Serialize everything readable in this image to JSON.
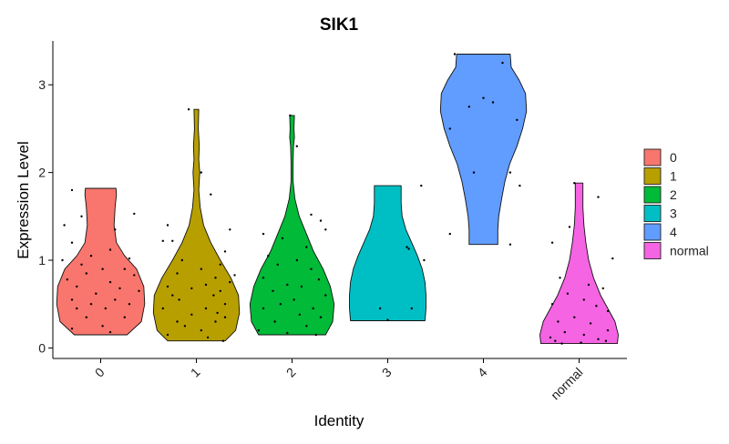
{
  "chart_data": {
    "type": "violin",
    "title": "SIK1",
    "xlabel": "Identity",
    "ylabel": "Expression Level",
    "ylim": [
      -0.12,
      3.5
    ],
    "yticks": [
      0,
      1,
      2,
      3
    ],
    "categories": [
      "0",
      "1",
      "2",
      "3",
      "4",
      "normal"
    ],
    "legend": {
      "placement": "right",
      "entries": [
        "0",
        "1",
        "2",
        "3",
        "4",
        "normal"
      ]
    },
    "grid": false,
    "series": [
      {
        "name": "0",
        "color": "#F8766D",
        "min": 0.15,
        "max": 1.82,
        "profile": [
          [
            0.15,
            0.55
          ],
          [
            0.3,
            0.85
          ],
          [
            0.5,
            0.92
          ],
          [
            0.7,
            0.9
          ],
          [
            0.9,
            0.75
          ],
          [
            1.05,
            0.5
          ],
          [
            1.2,
            0.33
          ],
          [
            1.4,
            0.28
          ],
          [
            1.6,
            0.3
          ],
          [
            1.75,
            0.33
          ],
          [
            1.82,
            0.32
          ]
        ],
        "points": [
          [
            -0.3,
            1.8
          ],
          [
            0.35,
            1.53
          ],
          [
            -0.2,
            1.5
          ],
          [
            -0.38,
            1.4
          ],
          [
            0.15,
            1.35
          ],
          [
            -0.3,
            1.2
          ],
          [
            0.1,
            1.12
          ],
          [
            -0.1,
            1.05
          ],
          [
            0.3,
            1.02
          ],
          [
            -0.4,
            1.0
          ],
          [
            -0.2,
            0.95
          ],
          [
            0.02,
            0.9
          ],
          [
            0.25,
            0.9
          ],
          [
            -0.15,
            0.85
          ],
          [
            0.35,
            0.83
          ],
          [
            -0.35,
            0.78
          ],
          [
            0.1,
            0.75
          ],
          [
            -0.25,
            0.7
          ],
          [
            0.2,
            0.68
          ],
          [
            -0.05,
            0.62
          ],
          [
            0.4,
            0.65
          ],
          [
            -0.3,
            0.55
          ],
          [
            0.15,
            0.55
          ],
          [
            0.3,
            0.5
          ],
          [
            -0.1,
            0.5
          ],
          [
            -0.25,
            0.45
          ],
          [
            0.05,
            0.45
          ],
          [
            -0.15,
            0.35
          ],
          [
            0.25,
            0.35
          ],
          [
            0.02,
            0.25
          ],
          [
            -0.3,
            0.22
          ],
          [
            0.1,
            0.18
          ]
        ]
      },
      {
        "name": "1",
        "color": "#B79F00",
        "min": 0.08,
        "max": 2.72,
        "profile": [
          [
            0.08,
            0.6
          ],
          [
            0.2,
            0.82
          ],
          [
            0.4,
            0.9
          ],
          [
            0.6,
            0.88
          ],
          [
            0.8,
            0.72
          ],
          [
            1.0,
            0.5
          ],
          [
            1.2,
            0.3
          ],
          [
            1.4,
            0.15
          ],
          [
            1.6,
            0.08
          ],
          [
            1.8,
            0.05
          ],
          [
            2.0,
            0.07
          ],
          [
            2.15,
            0.05
          ],
          [
            2.3,
            0.06
          ],
          [
            2.5,
            0.04
          ],
          [
            2.72,
            0.05
          ]
        ],
        "points": [
          [
            -0.08,
            2.72
          ],
          [
            0.05,
            2.0
          ],
          [
            0.15,
            1.75
          ],
          [
            -0.3,
            1.4
          ],
          [
            0.35,
            1.35
          ],
          [
            -0.35,
            1.22
          ],
          [
            -0.25,
            1.22
          ],
          [
            0.3,
            1.1
          ],
          [
            -0.15,
            1.0
          ],
          [
            0.25,
            0.95
          ],
          [
            0.05,
            0.9
          ],
          [
            -0.2,
            0.85
          ],
          [
            0.4,
            0.83
          ],
          [
            0.2,
            0.8
          ],
          [
            0.35,
            0.75
          ],
          [
            -0.3,
            0.7
          ],
          [
            0.1,
            0.72
          ],
          [
            -0.05,
            0.68
          ],
          [
            0.25,
            0.65
          ],
          [
            -0.25,
            0.6
          ],
          [
            0.18,
            0.6
          ],
          [
            -0.18,
            0.55
          ],
          [
            0.3,
            0.5
          ],
          [
            -0.35,
            0.45
          ],
          [
            0.1,
            0.45
          ],
          [
            0.22,
            0.4
          ],
          [
            -0.05,
            0.38
          ],
          [
            0.3,
            0.35
          ],
          [
            -0.2,
            0.3
          ],
          [
            0.2,
            0.3
          ],
          [
            -0.12,
            0.25
          ],
          [
            0.05,
            0.2
          ],
          [
            -0.3,
            0.15
          ],
          [
            0.12,
            0.12
          ],
          [
            0.28,
            0.08
          ]
        ]
      },
      {
        "name": "2",
        "color": "#00BA38",
        "min": 0.15,
        "max": 2.65,
        "profile": [
          [
            0.15,
            0.7
          ],
          [
            0.3,
            0.85
          ],
          [
            0.5,
            0.88
          ],
          [
            0.7,
            0.8
          ],
          [
            0.9,
            0.65
          ],
          [
            1.1,
            0.45
          ],
          [
            1.3,
            0.3
          ],
          [
            1.5,
            0.15
          ],
          [
            1.7,
            0.06
          ],
          [
            1.9,
            0.02
          ],
          [
            2.1,
            0.02
          ],
          [
            2.3,
            0.03
          ],
          [
            2.4,
            0.05
          ],
          [
            2.5,
            0.04
          ],
          [
            2.65,
            0.05
          ]
        ],
        "points": [
          [
            -0.02,
            2.65
          ],
          [
            0.05,
            2.3
          ],
          [
            0.2,
            1.52
          ],
          [
            0.3,
            1.45
          ],
          [
            0.35,
            1.35
          ],
          [
            -0.3,
            1.3
          ],
          [
            -0.1,
            1.25
          ],
          [
            0.15,
            1.15
          ],
          [
            -0.25,
            1.05
          ],
          [
            0.05,
            1.0
          ],
          [
            -0.15,
            0.95
          ],
          [
            0.2,
            0.9
          ],
          [
            -0.3,
            0.8
          ],
          [
            0.28,
            0.78
          ],
          [
            -0.05,
            0.72
          ],
          [
            0.1,
            0.7
          ],
          [
            -0.2,
            0.65
          ],
          [
            0.35,
            0.6
          ],
          [
            0.02,
            0.55
          ],
          [
            -0.12,
            0.5
          ],
          [
            0.22,
            0.45
          ],
          [
            -0.3,
            0.45
          ],
          [
            0.08,
            0.38
          ],
          [
            0.3,
            0.35
          ],
          [
            -0.18,
            0.3
          ],
          [
            0.15,
            0.25
          ],
          [
            -0.35,
            0.2
          ],
          [
            -0.05,
            0.17
          ],
          [
            0.25,
            0.15
          ]
        ]
      },
      {
        "name": "3",
        "color": "#00BFC4",
        "min": 0.31,
        "max": 1.85,
        "profile": [
          [
            0.31,
            0.78
          ],
          [
            0.45,
            0.8
          ],
          [
            0.6,
            0.8
          ],
          [
            0.75,
            0.78
          ],
          [
            0.9,
            0.72
          ],
          [
            1.05,
            0.62
          ],
          [
            1.2,
            0.5
          ],
          [
            1.35,
            0.38
          ],
          [
            1.5,
            0.3
          ],
          [
            1.65,
            0.28
          ],
          [
            1.75,
            0.28
          ],
          [
            1.85,
            0.28
          ]
        ],
        "points": [
          [
            0.35,
            1.85
          ],
          [
            0.2,
            1.15
          ],
          [
            0.22,
            1.13
          ],
          [
            0.38,
            1.0
          ],
          [
            -0.08,
            0.45
          ],
          [
            0.25,
            0.45
          ],
          [
            0.0,
            0.32
          ]
        ]
      },
      {
        "name": "4",
        "color": "#619CFF",
        "min": 1.18,
        "max": 3.35,
        "profile": [
          [
            1.18,
            0.3
          ],
          [
            1.35,
            0.3
          ],
          [
            1.5,
            0.32
          ],
          [
            1.7,
            0.38
          ],
          [
            1.9,
            0.45
          ],
          [
            2.1,
            0.55
          ],
          [
            2.3,
            0.7
          ],
          [
            2.5,
            0.82
          ],
          [
            2.7,
            0.9
          ],
          [
            2.9,
            0.88
          ],
          [
            3.05,
            0.75
          ],
          [
            3.2,
            0.58
          ],
          [
            3.35,
            0.56
          ]
        ],
        "points": [
          [
            -0.3,
            3.35
          ],
          [
            0.2,
            3.25
          ],
          [
            0.35,
            2.6
          ],
          [
            0.0,
            2.85
          ],
          [
            0.1,
            2.8
          ],
          [
            -0.15,
            2.75
          ],
          [
            0.28,
            2.0
          ],
          [
            -0.1,
            2.0
          ],
          [
            0.38,
            1.85
          ],
          [
            -0.35,
            2.5
          ],
          [
            0.28,
            1.18
          ],
          [
            -0.35,
            1.3
          ]
        ]
      },
      {
        "name": "normal",
        "color": "#F564E3",
        "min": 0.05,
        "max": 1.88,
        "profile": [
          [
            0.05,
            0.8
          ],
          [
            0.15,
            0.82
          ],
          [
            0.3,
            0.75
          ],
          [
            0.45,
            0.6
          ],
          [
            0.6,
            0.45
          ],
          [
            0.8,
            0.3
          ],
          [
            1.0,
            0.2
          ],
          [
            1.2,
            0.14
          ],
          [
            1.4,
            0.1
          ],
          [
            1.6,
            0.08
          ],
          [
            1.75,
            0.08
          ],
          [
            1.88,
            0.08
          ]
        ],
        "points": [
          [
            -0.05,
            1.88
          ],
          [
            0.2,
            1.72
          ],
          [
            -0.1,
            1.38
          ],
          [
            -0.28,
            1.2
          ],
          [
            0.35,
            1.02
          ],
          [
            -0.2,
            0.8
          ],
          [
            0.1,
            0.72
          ],
          [
            0.25,
            0.68
          ],
          [
            -0.12,
            0.62
          ],
          [
            0.05,
            0.55
          ],
          [
            -0.28,
            0.5
          ],
          [
            0.18,
            0.48
          ],
          [
            0.3,
            0.42
          ],
          [
            -0.05,
            0.35
          ],
          [
            -0.22,
            0.3
          ],
          [
            0.12,
            0.28
          ],
          [
            0.3,
            0.2
          ],
          [
            -0.15,
            0.18
          ],
          [
            0.05,
            0.15
          ],
          [
            -0.3,
            0.12
          ],
          [
            0.2,
            0.1
          ],
          [
            -0.25,
            0.08
          ],
          [
            0.02,
            0.06
          ],
          [
            0.28,
            0.08
          ],
          [
            -0.18,
            0.05
          ]
        ]
      }
    ]
  }
}
